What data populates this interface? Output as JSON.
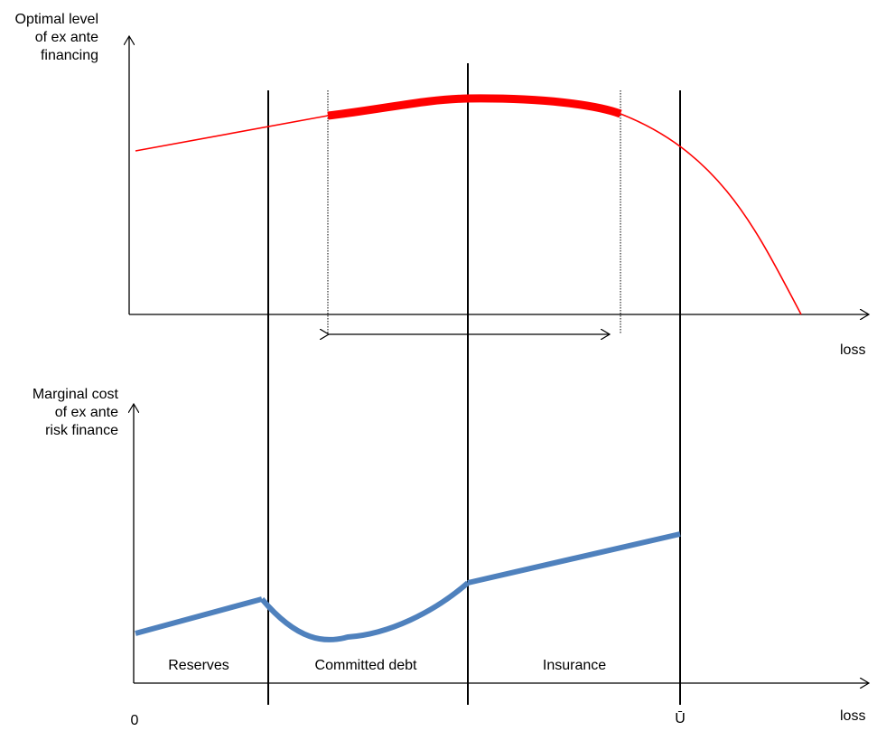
{
  "top_panel": {
    "y_label": [
      "Optimal level",
      "of ex ante",
      "financing"
    ],
    "x_label": "loss"
  },
  "bottom_panel": {
    "y_label": [
      "Marginal cost",
      "of ex ante",
      "risk finance"
    ],
    "x_label": "loss",
    "regions": [
      "Reserves",
      "Committed debt",
      "Insurance"
    ]
  },
  "markers": {
    "origin": "0",
    "upper": "Ū"
  },
  "colors": {
    "top_curve": "#ff0000",
    "bottom_curve": "#4f81bd",
    "axis": "#000000"
  }
}
